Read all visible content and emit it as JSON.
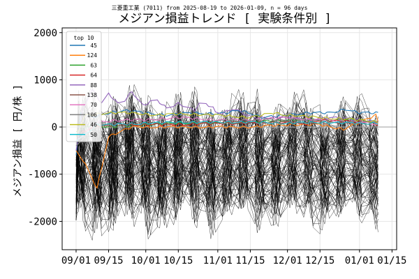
{
  "chart_data": {
    "type": "line",
    "subtitle": "三菱重工業 (7011) from 2025-08-19 to 2026-01-09, n = 96 days",
    "title": "メジアン損益トレンド [ 実験条件別 ]",
    "xlabel": "",
    "ylabel": "メジアン損益 [ 円/株 ]",
    "xlim": [
      "2025-08-26",
      "2026-01-17"
    ],
    "ylim": [
      -2600,
      2100
    ],
    "yticks": [
      -2000,
      -1000,
      0,
      1000,
      2000
    ],
    "xticks": [
      {
        "date": "2025-09-01",
        "label": "09/01"
      },
      {
        "date": "2025-09-15",
        "label": "09/15"
      },
      {
        "date": "2025-10-01",
        "label": "10/01"
      },
      {
        "date": "2025-10-15",
        "label": "10/15"
      },
      {
        "date": "2025-11-01",
        "label": "11/01"
      },
      {
        "date": "2025-11-15",
        "label": "11/15"
      },
      {
        "date": "2025-12-01",
        "label": "12/01"
      },
      {
        "date": "2025-12-15",
        "label": "12/15"
      },
      {
        "date": "2026-01-01",
        "label": "01/01"
      },
      {
        "date": "2026-01-15",
        "label": "01/15"
      }
    ],
    "grid": true,
    "zero_line": true,
    "legend": {
      "title": "top 10",
      "placement": "top-left"
    },
    "series": [
      {
        "name": "45",
        "color": "#1f77b4",
        "points": [
          [
            "2025-09-01",
            -600
          ],
          [
            "2025-09-03",
            300
          ],
          [
            "2025-09-08",
            200
          ],
          [
            "2025-09-15",
            300
          ],
          [
            "2025-09-22",
            350
          ],
          [
            "2025-10-01",
            300
          ],
          [
            "2025-10-10",
            250
          ],
          [
            "2025-10-20",
            300
          ],
          [
            "2025-11-01",
            280
          ],
          [
            "2025-11-05",
            300
          ],
          [
            "2025-11-10",
            350
          ],
          [
            "2025-11-15",
            300
          ],
          [
            "2025-11-20",
            200
          ],
          [
            "2025-12-01",
            250
          ],
          [
            "2025-12-10",
            300
          ],
          [
            "2025-12-20",
            300
          ],
          [
            "2025-12-26",
            380
          ],
          [
            "2026-01-01",
            300
          ],
          [
            "2026-01-10",
            300
          ]
        ]
      },
      {
        "name": "124",
        "color": "#ff7f0e",
        "points": [
          [
            "2025-09-01",
            -500
          ],
          [
            "2025-09-05",
            -800
          ],
          [
            "2025-09-10",
            -1300
          ],
          [
            "2025-09-15",
            -200
          ],
          [
            "2025-09-25",
            0
          ],
          [
            "2025-10-05",
            0
          ],
          [
            "2025-10-15",
            0
          ],
          [
            "2025-11-01",
            0
          ],
          [
            "2025-11-15",
            0
          ],
          [
            "2025-12-01",
            50
          ],
          [
            "2025-12-15",
            50
          ],
          [
            "2025-12-25",
            -50
          ],
          [
            "2026-01-01",
            100
          ],
          [
            "2026-01-08",
            250
          ],
          [
            "2026-01-10",
            0
          ]
        ]
      },
      {
        "name": "63",
        "color": "#2ca02c",
        "points": [
          [
            "2025-09-01",
            -100
          ],
          [
            "2025-09-08",
            50
          ],
          [
            "2025-09-15",
            0
          ],
          [
            "2025-10-01",
            50
          ],
          [
            "2025-10-15",
            80
          ],
          [
            "2025-11-01",
            80
          ],
          [
            "2025-11-15",
            100
          ],
          [
            "2025-12-01",
            150
          ],
          [
            "2025-12-15",
            150
          ],
          [
            "2026-01-01",
            150
          ],
          [
            "2026-01-10",
            100
          ]
        ]
      },
      {
        "name": "64",
        "color": "#d62728",
        "points": [
          [
            "2025-09-01",
            -200
          ],
          [
            "2025-09-08",
            0
          ],
          [
            "2025-09-15",
            50
          ],
          [
            "2025-10-01",
            50
          ],
          [
            "2025-10-15",
            50
          ],
          [
            "2025-11-01",
            80
          ],
          [
            "2025-11-15",
            80
          ],
          [
            "2025-12-01",
            100
          ],
          [
            "2025-12-08",
            50
          ],
          [
            "2025-12-15",
            150
          ],
          [
            "2026-01-01",
            100
          ],
          [
            "2026-01-10",
            50
          ]
        ]
      },
      {
        "name": "88",
        "color": "#9467bd",
        "points": [
          [
            "2025-09-01",
            -500
          ],
          [
            "2025-09-04",
            400
          ],
          [
            "2025-09-08",
            800
          ],
          [
            "2025-09-12",
            500
          ],
          [
            "2025-09-15",
            700
          ],
          [
            "2025-09-20",
            450
          ],
          [
            "2025-09-25",
            750
          ],
          [
            "2025-09-30",
            450
          ],
          [
            "2025-10-05",
            600
          ],
          [
            "2025-10-10",
            400
          ],
          [
            "2025-10-15",
            500
          ],
          [
            "2025-10-22",
            350
          ],
          [
            "2025-10-25",
            550
          ],
          [
            "2025-10-30",
            400
          ],
          [
            "2025-11-01",
            250
          ],
          [
            "2025-11-08",
            400
          ],
          [
            "2025-11-15",
            200
          ],
          [
            "2025-12-01",
            200
          ],
          [
            "2025-12-10",
            150
          ],
          [
            "2025-12-20",
            200
          ],
          [
            "2026-01-01",
            150
          ],
          [
            "2026-01-10",
            100
          ]
        ]
      },
      {
        "name": "138",
        "color": "#8c564b",
        "points": [
          [
            "2025-09-01",
            -300
          ],
          [
            "2025-09-10",
            0
          ],
          [
            "2025-09-20",
            50
          ],
          [
            "2025-10-01",
            80
          ],
          [
            "2025-10-15",
            80
          ],
          [
            "2025-11-01",
            100
          ],
          [
            "2025-11-15",
            100
          ],
          [
            "2025-12-01",
            100
          ],
          [
            "2025-12-15",
            80
          ],
          [
            "2026-01-01",
            100
          ],
          [
            "2026-01-10",
            100
          ]
        ]
      },
      {
        "name": "70",
        "color": "#e377c2",
        "points": [
          [
            "2025-09-01",
            -300
          ],
          [
            "2025-09-10",
            100
          ],
          [
            "2025-09-20",
            150
          ],
          [
            "2025-10-01",
            150
          ],
          [
            "2025-10-15",
            200
          ],
          [
            "2025-11-01",
            150
          ],
          [
            "2025-11-15",
            150
          ],
          [
            "2025-12-01",
            200
          ],
          [
            "2025-12-15",
            150
          ],
          [
            "2026-01-01",
            100
          ],
          [
            "2026-01-10",
            50
          ]
        ]
      },
      {
        "name": "106",
        "color": "#7f7f7f",
        "points": [
          [
            "2025-09-01",
            -400
          ],
          [
            "2025-09-10",
            50
          ],
          [
            "2025-09-20",
            100
          ],
          [
            "2025-10-01",
            100
          ],
          [
            "2025-10-15",
            120
          ],
          [
            "2025-11-01",
            120
          ],
          [
            "2025-11-15",
            150
          ],
          [
            "2025-12-01",
            150
          ],
          [
            "2025-12-15",
            120
          ],
          [
            "2026-01-01",
            100
          ],
          [
            "2026-01-10",
            100
          ]
        ]
      },
      {
        "name": "46",
        "color": "#bcbd22",
        "points": [
          [
            "2025-09-01",
            -200
          ],
          [
            "2025-09-05",
            250
          ],
          [
            "2025-09-15",
            300
          ],
          [
            "2025-09-25",
            300
          ],
          [
            "2025-10-05",
            250
          ],
          [
            "2025-10-15",
            280
          ],
          [
            "2025-11-01",
            250
          ],
          [
            "2025-11-15",
            200
          ],
          [
            "2025-11-25",
            300
          ],
          [
            "2025-12-01",
            250
          ],
          [
            "2025-12-15",
            200
          ],
          [
            "2026-01-01",
            150
          ],
          [
            "2026-01-10",
            100
          ]
        ]
      },
      {
        "name": "50",
        "color": "#17becf",
        "points": [
          [
            "2025-09-01",
            -300
          ],
          [
            "2025-09-10",
            50
          ],
          [
            "2025-09-20",
            50
          ],
          [
            "2025-10-01",
            80
          ],
          [
            "2025-10-15",
            100
          ],
          [
            "2025-11-01",
            100
          ],
          [
            "2025-11-15",
            100
          ],
          [
            "2025-12-01",
            80
          ],
          [
            "2025-12-15",
            100
          ],
          [
            "2026-01-01",
            80
          ],
          [
            "2026-01-10",
            80
          ]
        ]
      }
    ],
    "background_series_count": 86,
    "background_series_color": "#000000",
    "background_series_note": "remaining condition sets drawn as thin black lines; values approximate"
  }
}
